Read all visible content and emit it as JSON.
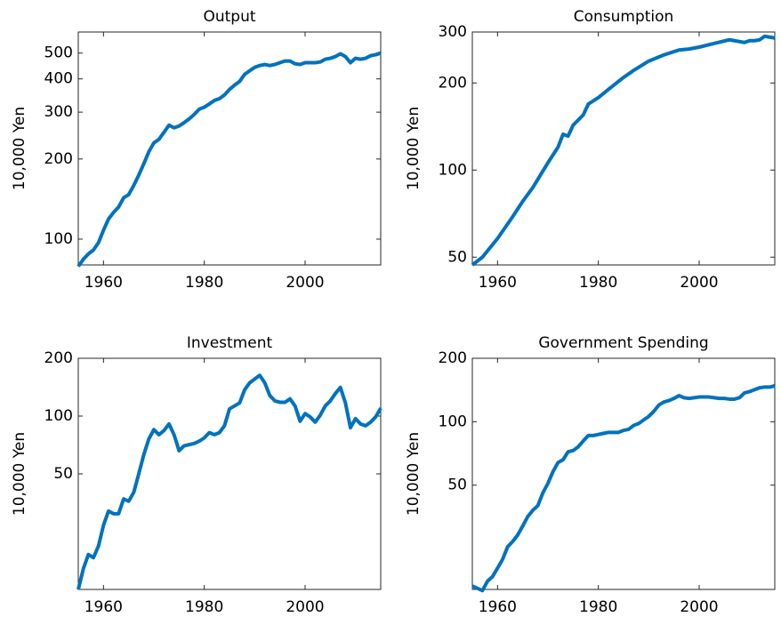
{
  "chart_data": [
    {
      "type": "line",
      "title": "Output",
      "ylabel": "10,000 Yen",
      "log_y": true,
      "xlim": [
        1955,
        2015
      ],
      "xticks": [
        1960,
        1980,
        2000
      ],
      "ylim": [
        80,
        600
      ],
      "yticks": [
        100,
        200,
        300,
        400,
        500
      ],
      "series": [
        {
          "color": "#0072bd",
          "x": [
            1955,
            1956,
            1957,
            1958,
            1959,
            1960,
            1961,
            1962,
            1963,
            1964,
            1965,
            1966,
            1967,
            1968,
            1969,
            1970,
            1971,
            1972,
            1973,
            1974,
            1975,
            1976,
            1977,
            1978,
            1979,
            1980,
            1981,
            1982,
            1983,
            1984,
            1985,
            1986,
            1987,
            1988,
            1989,
            1990,
            1991,
            1992,
            1993,
            1994,
            1995,
            1996,
            1997,
            1998,
            1999,
            2000,
            2001,
            2002,
            2003,
            2004,
            2005,
            2006,
            2007,
            2008,
            2009,
            2010,
            2011,
            2012,
            2013,
            2014,
            2015
          ],
          "values": [
            79,
            84,
            88,
            91,
            97,
            108,
            119,
            126,
            132,
            143,
            147,
            159,
            174,
            192,
            213,
            230,
            237,
            252,
            268,
            262,
            266,
            274,
            283,
            294,
            308,
            313,
            322,
            332,
            337,
            348,
            365,
            379,
            391,
            416,
            429,
            442,
            449,
            453,
            449,
            453,
            460,
            467,
            467,
            456,
            453,
            460,
            460,
            460,
            463,
            474,
            478,
            485,
            497,
            485,
            460,
            478,
            474,
            478,
            489,
            493,
            500
          ]
        }
      ]
    },
    {
      "type": "line",
      "title": "Consumption",
      "ylabel": "10,000 Yen",
      "log_y": true,
      "xlim": [
        1955,
        2015
      ],
      "xticks": [
        1960,
        1980,
        2000
      ],
      "ylim": [
        47,
        300
      ],
      "yticks": [
        50,
        100,
        200,
        300
      ],
      "series": [
        {
          "color": "#0072bd",
          "x": [
            1955,
            1957,
            1960,
            1963,
            1965,
            1967,
            1970,
            1972,
            1973,
            1974,
            1975,
            1977,
            1978,
            1980,
            1982,
            1985,
            1987,
            1990,
            1993,
            1996,
            1998,
            2000,
            2003,
            2006,
            2008,
            2009,
            2010,
            2011,
            2012,
            2013,
            2014,
            2015
          ],
          "values": [
            47,
            50,
            58,
            69,
            78,
            87,
            106,
            120,
            133,
            131,
            143,
            155,
            169,
            178,
            190,
            209,
            221,
            238,
            250,
            260,
            262,
            266,
            274,
            282,
            278,
            276,
            280,
            280,
            282,
            290,
            288,
            286
          ]
        }
      ]
    },
    {
      "type": "line",
      "title": "Investment",
      "ylabel": "10,000 Yen",
      "log_y": true,
      "xlim": [
        1955,
        2015
      ],
      "xticks": [
        1960,
        1980,
        2000
      ],
      "ylim": [
        12.5,
        200
      ],
      "yticks": [
        50,
        100,
        200
      ],
      "series": [
        {
          "color": "#0072bd",
          "x": [
            1955,
            1956,
            1957,
            1958,
            1959,
            1960,
            1961,
            1962,
            1963,
            1964,
            1965,
            1966,
            1967,
            1968,
            1969,
            1970,
            1971,
            1972,
            1973,
            1974,
            1975,
            1976,
            1977,
            1978,
            1979,
            1980,
            1981,
            1982,
            1983,
            1984,
            1985,
            1986,
            1987,
            1988,
            1989,
            1990,
            1991,
            1992,
            1993,
            1994,
            1995,
            1996,
            1997,
            1998,
            1999,
            2000,
            2001,
            2002,
            2003,
            2004,
            2005,
            2006,
            2007,
            2008,
            2009,
            2010,
            2011,
            2012,
            2013,
            2014,
            2015
          ],
          "values": [
            12.5,
            16,
            19,
            18.3,
            21,
            27,
            32,
            31,
            31,
            37,
            36,
            40,
            50,
            63,
            76,
            85,
            80,
            84,
            91,
            80,
            66,
            70,
            71,
            72,
            74,
            77,
            82,
            80,
            82,
            89,
            109,
            113,
            117,
            137,
            149,
            156,
            163,
            149,
            128,
            120,
            118,
            118,
            123,
            113,
            94,
            103,
            99,
            93,
            101,
            113,
            120,
            131,
            141,
            117,
            87,
            97,
            91,
            89,
            93,
            99,
            110
          ]
        }
      ]
    },
    {
      "type": "line",
      "title": "Government Spending",
      "ylabel": "10,000 Yen",
      "log_y": true,
      "xlim": [
        1955,
        2015
      ],
      "xticks": [
        1960,
        1980,
        2000
      ],
      "ylim": [
        16,
        200
      ],
      "yticks": [
        50,
        100,
        200
      ],
      "series": [
        {
          "color": "#0072bd",
          "x": [
            1955,
            1956,
            1957,
            1958,
            1959,
            1960,
            1961,
            1962,
            1963,
            1964,
            1965,
            1966,
            1967,
            1968,
            1969,
            1970,
            1971,
            1972,
            1973,
            1974,
            1975,
            1976,
            1977,
            1978,
            1979,
            1980,
            1981,
            1982,
            1983,
            1984,
            1985,
            1986,
            1987,
            1988,
            1989,
            1990,
            1991,
            1992,
            1993,
            1994,
            1995,
            1996,
            1997,
            1998,
            1999,
            2000,
            2001,
            2002,
            2003,
            2004,
            2005,
            2006,
            2007,
            2008,
            2009,
            2010,
            2011,
            2012,
            2013,
            2014,
            2015
          ],
          "values": [
            16.6,
            16.2,
            15.8,
            17.5,
            18.4,
            20.2,
            22.2,
            25.5,
            27,
            29,
            32,
            35.5,
            38,
            40,
            46,
            51,
            58,
            64,
            66,
            72,
            73,
            76,
            81,
            86,
            86,
            87,
            88,
            89,
            89,
            89,
            91,
            92,
            96,
            98,
            102,
            106,
            112,
            120,
            124,
            126,
            129,
            133,
            130,
            129,
            130,
            131,
            131,
            131,
            130,
            129,
            129,
            128,
            128,
            130,
            137,
            139,
            142,
            145,
            146,
            146,
            148
          ]
        }
      ]
    }
  ]
}
